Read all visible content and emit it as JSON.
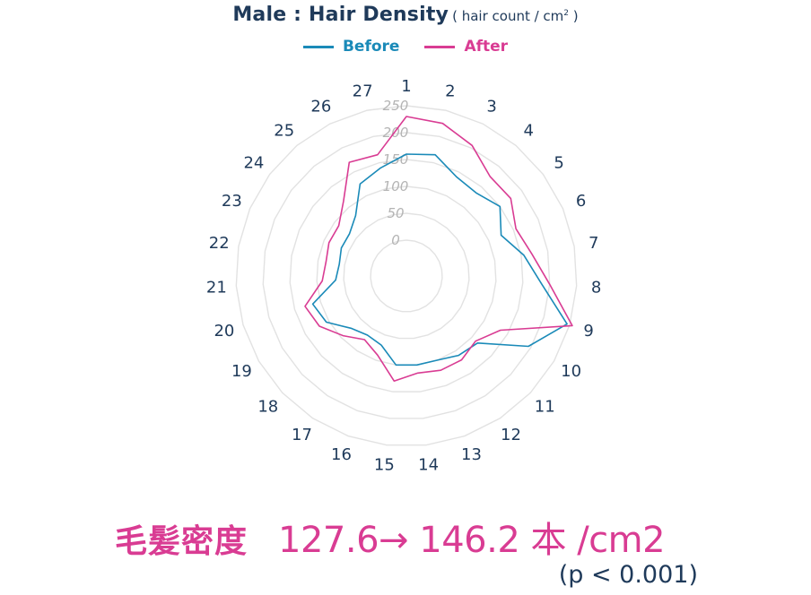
{
  "title": {
    "main": "Male : Hair Density",
    "unit_open": "( hair count / cm",
    "unit_sup": "2",
    "unit_close": " )"
  },
  "summary": {
    "label": "毛髪密度",
    "values": "127.6→ 146.2 本 /cm2",
    "pvalue": "(p < 0.001)"
  },
  "chart_data": {
    "type": "radar",
    "categories": [
      "1",
      "2",
      "3",
      "4",
      "5",
      "6",
      "7",
      "8",
      "9",
      "10",
      "11",
      "12",
      "13",
      "14",
      "15",
      "16",
      "17",
      "18",
      "19",
      "20",
      "21",
      "22",
      "23",
      "24",
      "25",
      "26",
      "27"
    ],
    "rlim": [
      0,
      250
    ],
    "rticks": [
      0,
      50,
      100,
      150,
      200,
      250
    ],
    "series": [
      {
        "name": "Before",
        "color": "#1a8ab8",
        "values": [
          160,
          165,
          140,
          135,
          150,
          125,
          155,
          185,
          245,
          195,
          115,
          110,
          100,
          100,
          100,
          70,
          65,
          75,
          105,
          115,
          65,
          60,
          65,
          65,
          80,
          125,
          140
        ]
      },
      {
        "name": "After",
        "color": "#d93c93",
        "values": [
          230,
          225,
          205,
          175,
          175,
          155,
          170,
          200,
          255,
          135,
          110,
          120,
          120,
          115,
          130,
          90,
          75,
          95,
          120,
          130,
          90,
          85,
          90,
          90,
          115,
          170,
          165
        ]
      }
    ],
    "grid": true
  }
}
